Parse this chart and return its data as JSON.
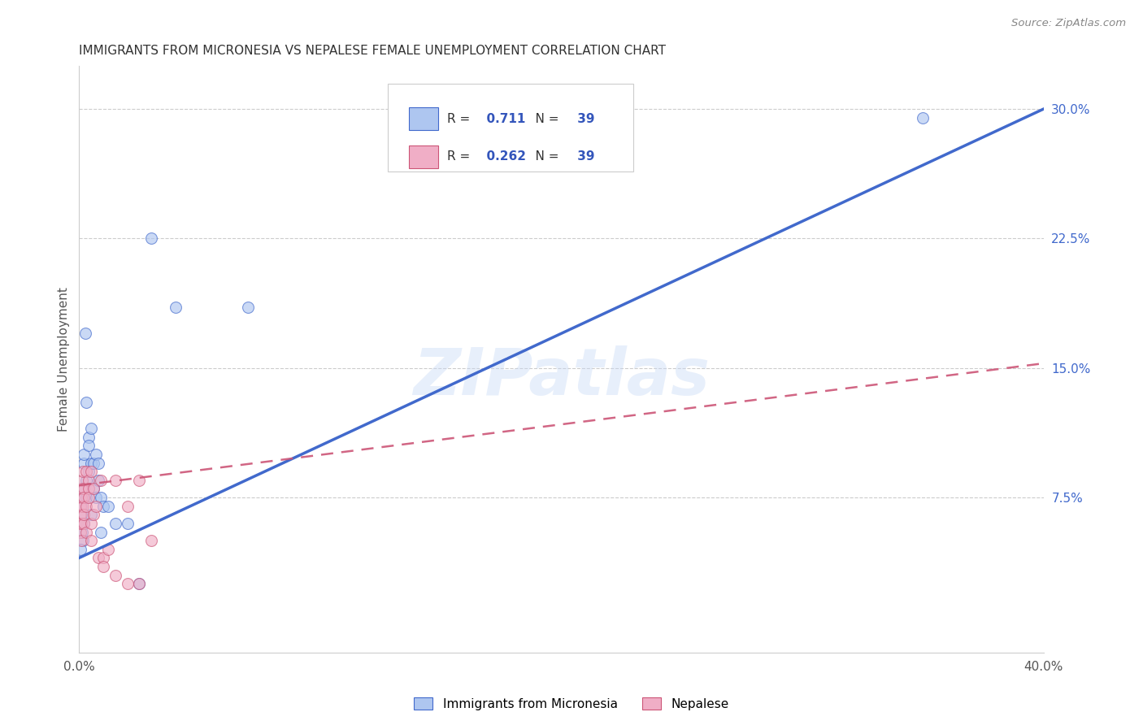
{
  "title": "IMMIGRANTS FROM MICRONESIA VS NEPALESE FEMALE UNEMPLOYMENT CORRELATION CHART",
  "source": "Source: ZipAtlas.com",
  "ylabel_label": "Female Unemployment",
  "right_yticks": [
    "30.0%",
    "22.5%",
    "15.0%",
    "7.5%"
  ],
  "right_ytick_vals": [
    0.3,
    0.225,
    0.15,
    0.075
  ],
  "xlim": [
    0.0,
    0.4
  ],
  "ylim": [
    -0.015,
    0.325
  ],
  "blue_R": "0.711",
  "blue_N": "39",
  "pink_R": "0.262",
  "pink_N": "39",
  "legend_label1": "Immigrants from Micronesia",
  "legend_label2": "Nepalese",
  "watermark": "ZIPatlas",
  "blue_scatter_x": [
    0.0008,
    0.001,
    0.0012,
    0.0015,
    0.0005,
    0.0008,
    0.001,
    0.0015,
    0.002,
    0.001,
    0.002,
    0.003,
    0.0025,
    0.002,
    0.004,
    0.003,
    0.004,
    0.005,
    0.004,
    0.003,
    0.005,
    0.006,
    0.006,
    0.005,
    0.007,
    0.007,
    0.008,
    0.008,
    0.009,
    0.009,
    0.01,
    0.012,
    0.015,
    0.02,
    0.025,
    0.03,
    0.04,
    0.07,
    0.35
  ],
  "blue_scatter_y": [
    0.06,
    0.065,
    0.055,
    0.05,
    0.045,
    0.07,
    0.08,
    0.075,
    0.095,
    0.06,
    0.1,
    0.085,
    0.17,
    0.06,
    0.11,
    0.13,
    0.09,
    0.095,
    0.105,
    0.075,
    0.115,
    0.08,
    0.095,
    0.065,
    0.1,
    0.075,
    0.095,
    0.085,
    0.075,
    0.055,
    0.07,
    0.07,
    0.06,
    0.06,
    0.025,
    0.225,
    0.185,
    0.185,
    0.295
  ],
  "pink_scatter_x": [
    0.0003,
    0.0005,
    0.0005,
    0.0007,
    0.0008,
    0.001,
    0.001,
    0.001,
    0.0012,
    0.0015,
    0.0015,
    0.002,
    0.002,
    0.002,
    0.002,
    0.003,
    0.003,
    0.003,
    0.004,
    0.004,
    0.004,
    0.005,
    0.005,
    0.005,
    0.006,
    0.006,
    0.007,
    0.008,
    0.009,
    0.01,
    0.01,
    0.012,
    0.015,
    0.015,
    0.02,
    0.02,
    0.025,
    0.025,
    0.03
  ],
  "pink_scatter_y": [
    0.06,
    0.055,
    0.07,
    0.065,
    0.075,
    0.08,
    0.06,
    0.05,
    0.085,
    0.07,
    0.09,
    0.08,
    0.06,
    0.075,
    0.065,
    0.09,
    0.07,
    0.055,
    0.085,
    0.08,
    0.075,
    0.09,
    0.06,
    0.05,
    0.08,
    0.065,
    0.07,
    0.04,
    0.085,
    0.04,
    0.035,
    0.045,
    0.085,
    0.03,
    0.07,
    0.025,
    0.085,
    0.025,
    0.05
  ],
  "blue_color": "#aec6f0",
  "pink_color": "#f0aec6",
  "blue_line_color": "#4169cc",
  "pink_line_color": "#cc5577",
  "scatter_size": 100,
  "scatter_alpha": 0.65,
  "background_color": "#ffffff",
  "grid_color": "#cccccc",
  "legend_text_color": "#333333",
  "legend_value_color": "#3355bb"
}
